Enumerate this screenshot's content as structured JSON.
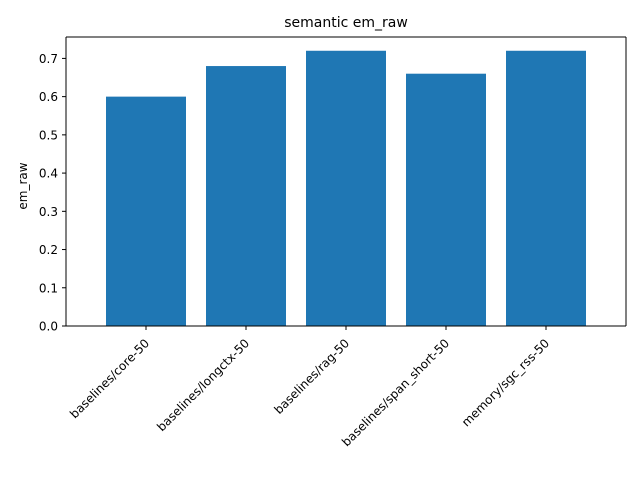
{
  "chart_data": {
    "type": "bar",
    "title": "semantic em_raw",
    "xlabel": "",
    "ylabel": "em_raw",
    "categories": [
      "baselines/core-50",
      "baselines/longctx-50",
      "baselines/rag-50",
      "baselines/span_short-50",
      "memory/sgc_rss-50"
    ],
    "values": [
      0.6,
      0.68,
      0.72,
      0.66,
      0.72
    ],
    "ylim": [
      0,
      0.756
    ],
    "yticks": [
      0.0,
      0.1,
      0.2,
      0.3,
      0.4,
      0.5,
      0.6,
      0.7
    ],
    "ytick_labels": [
      "0.0",
      "0.1",
      "0.2",
      "0.3",
      "0.4",
      "0.5",
      "0.6",
      "0.7"
    ],
    "grid": false,
    "legend": "none",
    "colors": {
      "bar": "#1f77b4",
      "axis": "#000000",
      "background": "#ffffff"
    }
  }
}
